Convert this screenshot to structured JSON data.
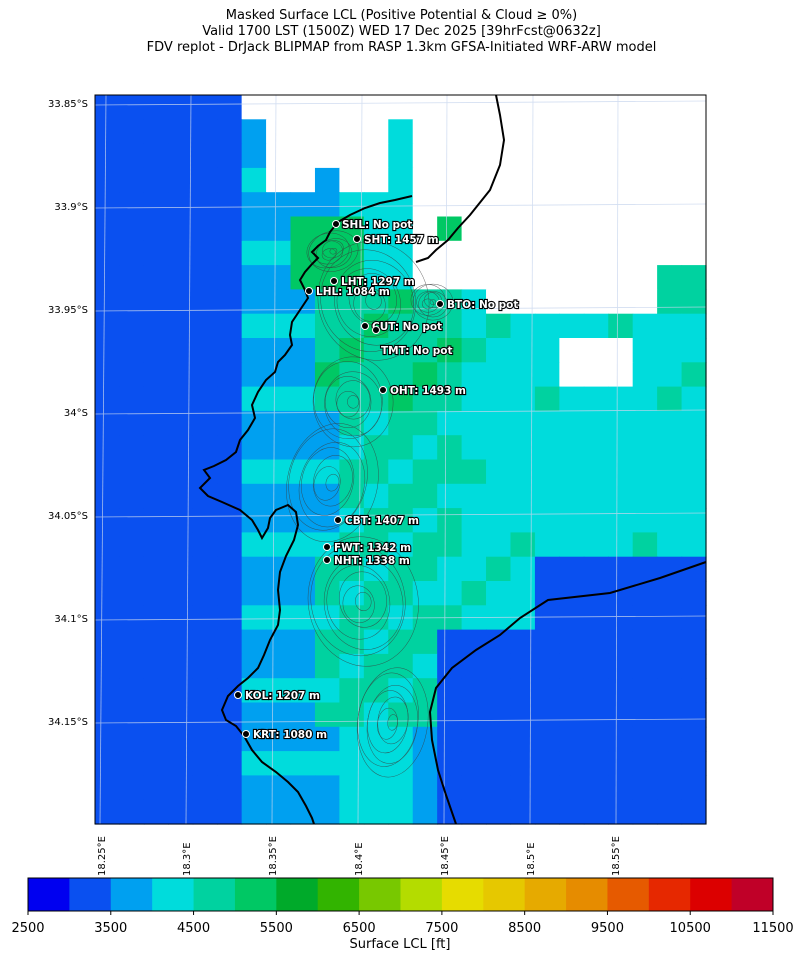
{
  "title": {
    "line1": "Masked Surface LCL (Positive Potential & Cloud ≥ 0%)",
    "line2": "Valid 1700 LST (1500Z) WED 17 Dec 2025 [39hrFcst@0632z]",
    "line3": "FDV replot - DrJack BLIPMAP from RASP 1.3km GFSA-Initiated WRF-ARW model"
  },
  "axes": {
    "lat_labels": [
      "33.85°S",
      "33.9°S",
      "33.95°S",
      "34°S",
      "34.05°S",
      "34.1°S",
      "34.15°S"
    ],
    "lon_labels": [
      "18.25°E",
      "18.3°E",
      "18.35°E",
      "18.4°E",
      "18.45°E",
      "18.5°E",
      "18.55°E"
    ]
  },
  "colorbar": {
    "label": "Surface LCL [ft]",
    "tick_labels": [
      "2500",
      "3500",
      "4500",
      "5500",
      "6500",
      "7500",
      "8500",
      "9500",
      "10500",
      "11500"
    ],
    "colors": [
      "#0000f0",
      "#0a50f0",
      "#00a0f0",
      "#00dcdc",
      "#00d2a0",
      "#00c864",
      "#00aa2a",
      "#32b400",
      "#78c800",
      "#b4dc00",
      "#e6dc00",
      "#e6c800",
      "#e6aa00",
      "#e68c00",
      "#e65a00",
      "#e62800",
      "#dc0000",
      "#c00028"
    ]
  },
  "stations": [
    {
      "code": "SHL",
      "label": "SHL: No pot"
    },
    {
      "code": "SHT",
      "label": "SHT: 1457 m"
    },
    {
      "code": "LHT",
      "label": "LHT: 1297 m"
    },
    {
      "code": "LHL",
      "label": "LHL: 1084 m"
    },
    {
      "code": "BTO",
      "label": "BTO: No pot"
    },
    {
      "code": "CUT",
      "label": "CUT: No pot"
    },
    {
      "code": "TMT",
      "label": "TMT: No pot"
    },
    {
      "code": "OHT",
      "label": "OHT: 1493 m"
    },
    {
      "code": "CBT",
      "label": "CBT: 1407 m"
    },
    {
      "code": "FWT",
      "label": "FWT: 1342 m"
    },
    {
      "code": "NHT",
      "label": "NHT: 1338 m"
    },
    {
      "code": "KOL",
      "label": "KOL: 1207 m"
    },
    {
      "code": "KRT",
      "label": "KRT: 1080 m"
    }
  ]
}
